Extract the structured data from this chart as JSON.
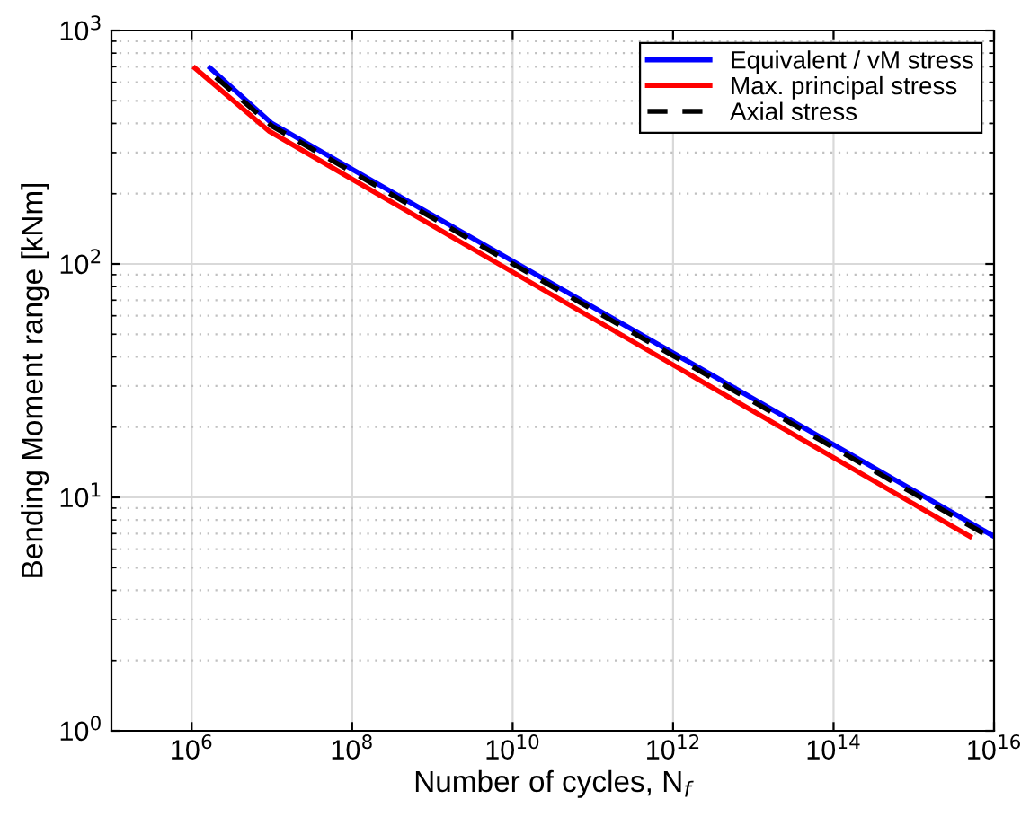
{
  "chart_data": {
    "type": "line",
    "xlabel": "Number of cycles, N$_{f}$",
    "ylabel": "Bending Moment range [kNm]",
    "log": "xy",
    "xlim": [
      100000,
      1e+16
    ],
    "ylim": [
      1,
      1000
    ],
    "xticks": [
      {
        "value": 1000000.0,
        "label": "10$^{6}$"
      },
      {
        "value": 100000000.0,
        "label": "10$^{8}$"
      },
      {
        "value": 10000000000.0,
        "label": "10$^{10}$"
      },
      {
        "value": 1000000000000.0,
        "label": "10$^{12}$"
      },
      {
        "value": 100000000000000.0,
        "label": "10$^{14}$"
      },
      {
        "value": 1e+16,
        "label": "10$^{16}$"
      }
    ],
    "yticks": [
      {
        "value": 1,
        "label": "10$^{0}$"
      },
      {
        "value": 10,
        "label": "10$^{1}$"
      },
      {
        "value": 100,
        "label": "10$^{2}$"
      },
      {
        "value": 1000,
        "label": "10$^{3}$"
      }
    ],
    "grid": true,
    "legend": "top right",
    "series": [
      {
        "name": "Equivalent / vM stress",
        "color": "#0000ff",
        "line_style": "solid",
        "x": [
          1700000.0,
          10000000.0,
          1e+16
        ],
        "values": [
          690,
          400,
          6.8
        ]
      },
      {
        "name": "Max. principal stress",
        "color": "#ff0000",
        "line_style": "solid",
        "x": [
          1100000.0,
          9300000.0,
          5000000000000000.0
        ],
        "values": [
          690,
          370,
          6.8
        ]
      },
      {
        "name": "Axial stress",
        "color": "#000000",
        "line_style": "dashed",
        "x": [
          2000000.0,
          10000000.0,
          8000000000000000.0
        ],
        "values": [
          630,
          390,
          6.9
        ]
      }
    ]
  }
}
